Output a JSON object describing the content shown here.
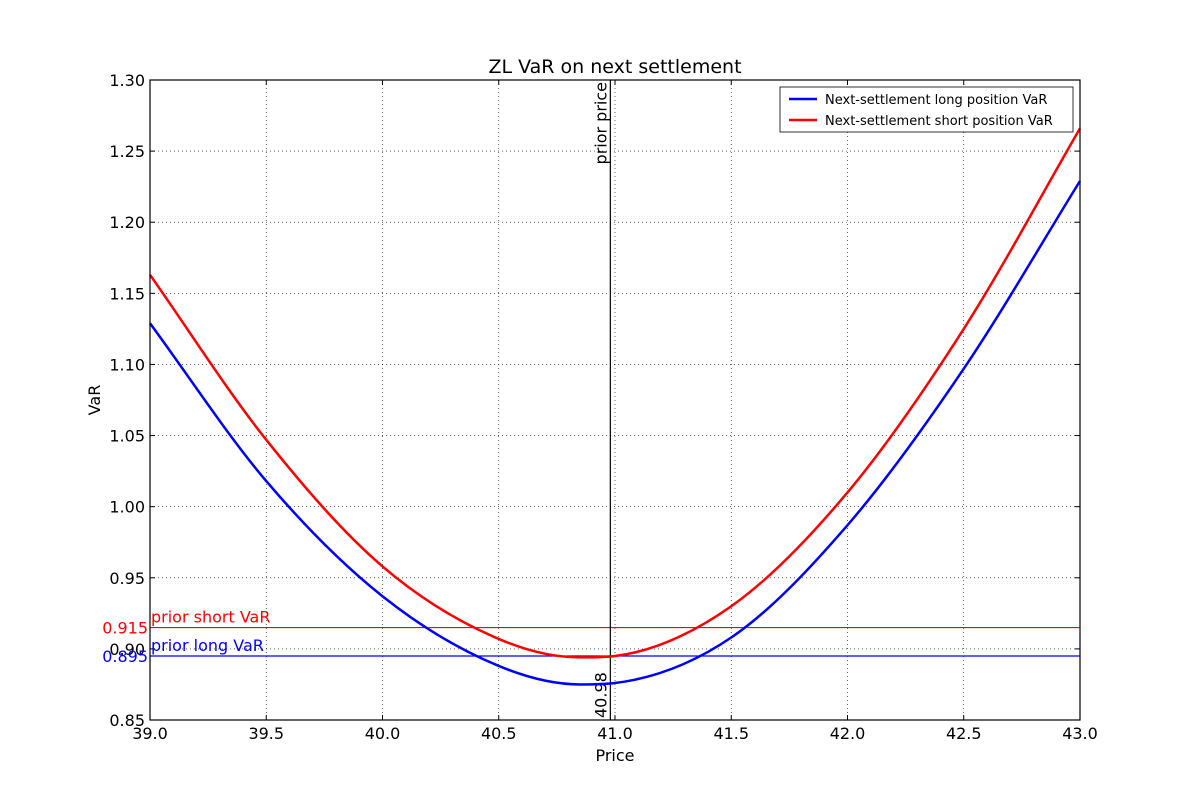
{
  "chart_data": {
    "type": "line",
    "title": "ZL VaR on next settlement",
    "xlabel": "Price",
    "ylabel": "VaR",
    "xlim": [
      39.0,
      43.0
    ],
    "ylim": [
      0.85,
      1.3
    ],
    "xticks": [
      "39.0",
      "39.5",
      "40.0",
      "40.5",
      "41.0",
      "41.5",
      "42.0",
      "42.5",
      "43.0"
    ],
    "yticks": [
      "0.85",
      "0.90",
      "0.95",
      "1.00",
      "1.05",
      "1.10",
      "1.15",
      "1.20",
      "1.25",
      "1.30"
    ],
    "grid": true,
    "legend_position": "top-right",
    "x": [
      39.0,
      39.5,
      40.0,
      40.5,
      40.85,
      41.0,
      41.5,
      42.0,
      42.5,
      43.0
    ],
    "series": [
      {
        "name": "Next-settlement long position VaR",
        "color": "#0000ff",
        "values": [
          1.129,
          1.018,
          0.937,
          0.888,
          0.875,
          0.876,
          0.908,
          0.987,
          1.097,
          1.229
        ]
      },
      {
        "name": "Next-settlement short position VaR",
        "color": "#ff0000",
        "values": [
          1.163,
          1.047,
          0.958,
          0.907,
          0.894,
          0.895,
          0.93,
          1.01,
          1.125,
          1.266
        ]
      }
    ],
    "reference_lines": [
      {
        "orientation": "horizontal",
        "y": 0.915,
        "color": "#ff0000",
        "label": "prior short VaR",
        "value_label": "0.915"
      },
      {
        "orientation": "horizontal",
        "y": 0.895,
        "color": "#0000ff",
        "label": "prior long VaR",
        "value_label": "0.895"
      },
      {
        "orientation": "vertical",
        "x": 40.98,
        "color": "#000000",
        "label": "prior price",
        "value_label": "40.98"
      }
    ]
  }
}
